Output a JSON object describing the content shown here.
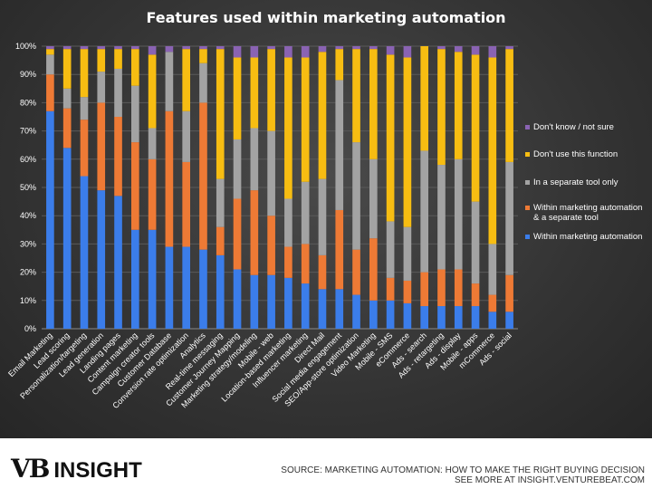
{
  "chart_data": {
    "type": "bar",
    "stacked": true,
    "title": "Features used within marketing automation",
    "ylim": [
      0,
      100
    ],
    "yticks": [
      "0%",
      "10%",
      "20%",
      "30%",
      "40%",
      "50%",
      "60%",
      "70%",
      "80%",
      "90%",
      "100%"
    ],
    "legend_position": "right",
    "categories": [
      "Email Marketing",
      "Lead scoring",
      "Personalization/targeting",
      "Lead generation",
      "Landing pages",
      "Content marketing",
      "Campaign creator tools",
      "Customer Database",
      "Conversion rate optimization",
      "Analytics",
      "Real-time messaging",
      "Customer Journey Mapping",
      "Marketing strategy/modeling",
      "Mobile - web",
      "Location-based marketing",
      "Influencer marketing",
      "Direct Mail",
      "Social media engagement",
      "SEO/App-store optimization",
      "Video Marketing",
      "Mobile - SMS",
      "eCommerce",
      "Ads - search",
      "Ads - retargeting",
      "Ads - display",
      "Mobile - apps",
      "mCommerce",
      "Ads - social"
    ],
    "series": [
      {
        "name": "Within marketing automation",
        "color": "#3b7dea",
        "values": [
          77,
          64,
          54,
          49,
          47,
          35,
          35,
          29,
          29,
          28,
          26,
          21,
          19,
          19,
          18,
          16,
          14,
          14,
          12,
          10,
          10,
          9,
          8,
          8,
          8,
          8,
          6,
          6
        ]
      },
      {
        "name": "Within marketing automation & a separate tool",
        "color": "#ee7a35",
        "values": [
          13,
          14,
          20,
          31,
          28,
          31,
          25,
          48,
          30,
          52,
          10,
          25,
          30,
          21,
          11,
          14,
          12,
          28,
          16,
          22,
          8,
          8,
          12,
          13,
          13,
          8,
          6,
          13
        ]
      },
      {
        "name": "In a separate tool only",
        "color": "#a3a3a3",
        "values": [
          7,
          7,
          8,
          11,
          17,
          20,
          11,
          21,
          18,
          14,
          17,
          21,
          22,
          30,
          17,
          22,
          27,
          46,
          38,
          28,
          20,
          19,
          43,
          37,
          39,
          29,
          18,
          40
        ]
      },
      {
        "name": "Don't use this function",
        "color": "#f7bd12",
        "values": [
          2,
          14,
          17,
          8,
          7,
          13,
          26,
          0,
          22,
          5,
          46,
          29,
          25,
          29,
          50,
          44,
          45,
          11,
          33,
          39,
          59,
          60,
          37,
          41,
          38,
          52,
          66,
          40
        ]
      },
      {
        "name": "Don't know / not sure",
        "color": "#8a63b3",
        "values": [
          1,
          1,
          1,
          1,
          1,
          1,
          3,
          2,
          1,
          1,
          1,
          4,
          4,
          1,
          4,
          4,
          2,
          1,
          1,
          1,
          3,
          4,
          0,
          1,
          2,
          3,
          4,
          1
        ]
      }
    ]
  },
  "footer": {
    "logo_vb": "VB",
    "logo_insight": "INSIGHT",
    "source_line1": "SOURCE: MARKETING AUTOMATION: HOW TO MAKE THE RIGHT BUYING DECISION",
    "source_line2": "SEE MORE AT INSIGHT.VENTUREBEAT.COM"
  }
}
